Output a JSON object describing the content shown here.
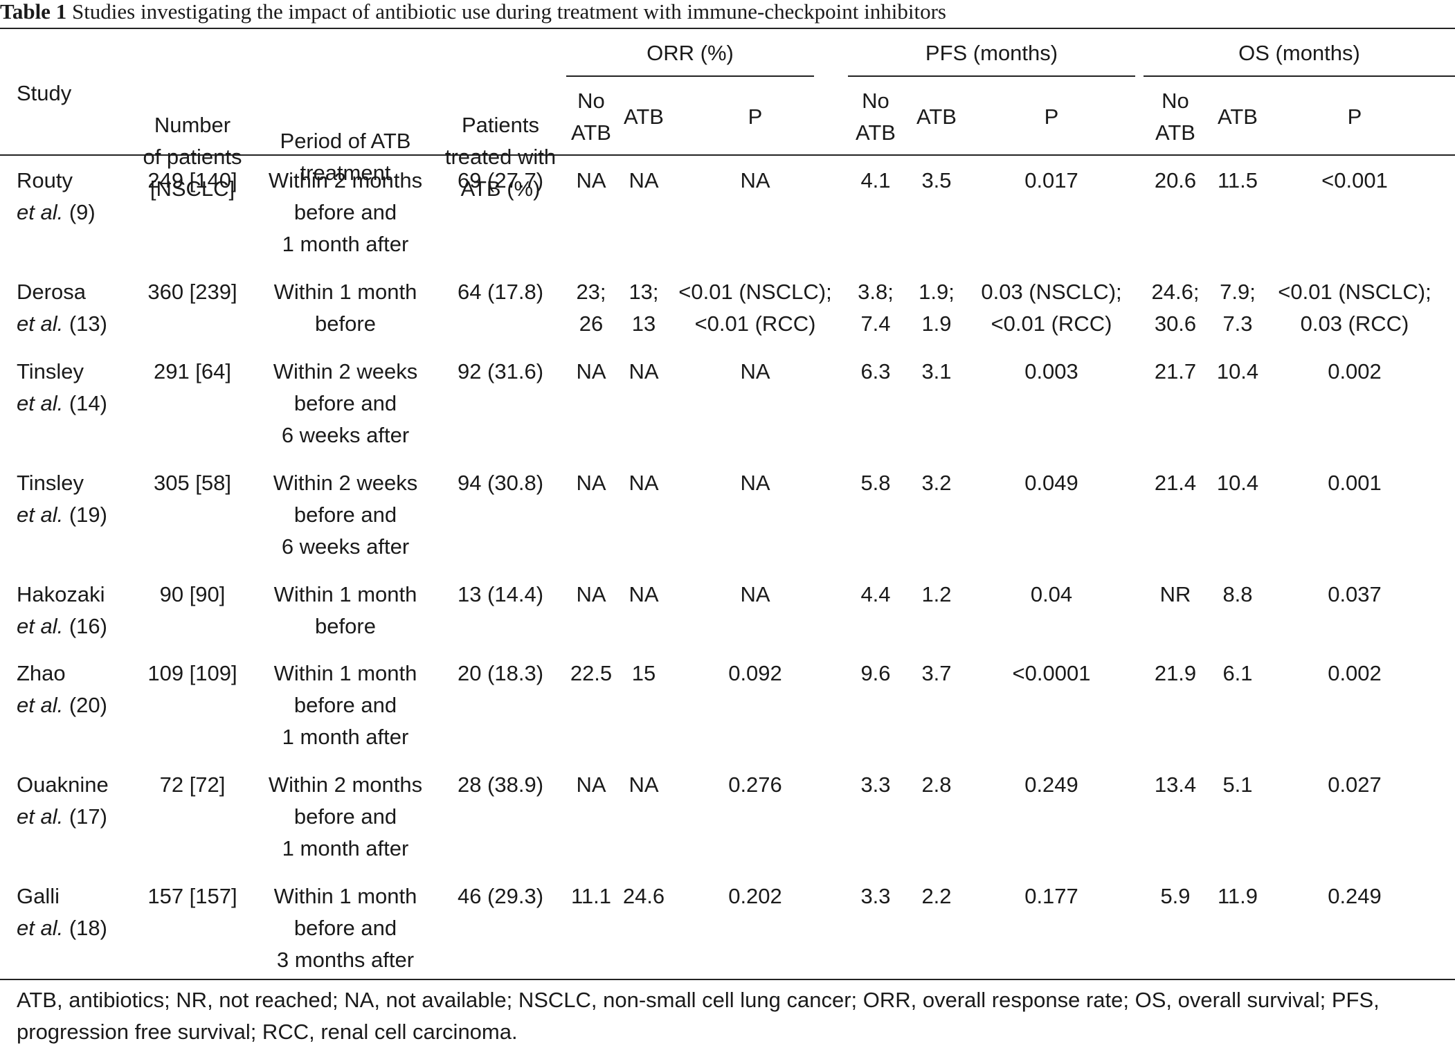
{
  "caption": {
    "label": "Table 1",
    "text": "Studies investigating the impact of antibiotic use during treatment with immune-checkpoint inhibitors"
  },
  "header": {
    "study": "Study",
    "patients": [
      "Number",
      "of patients",
      "[NSCLC]"
    ],
    "period": [
      "Period of ATB",
      "treatment"
    ],
    "treated": [
      "Patients",
      "treated with",
      "ATB (%)"
    ],
    "orr": "ORR (%)",
    "pfs": "PFS (months)",
    "os": "OS (months)",
    "no_atb": [
      "No",
      "ATB"
    ],
    "atb": "ATB",
    "p": "P"
  },
  "rows": [
    {
      "study": "Routy",
      "ref": "(9)",
      "patients": "249 [140]",
      "period": [
        "Within 2 months",
        "before and",
        "1 month after"
      ],
      "treated": "69 (27.7)",
      "orr_no": [
        "NA"
      ],
      "orr_atb": [
        "NA"
      ],
      "orr_p": [
        "NA"
      ],
      "pfs_no": [
        "4.1"
      ],
      "pfs_atb": [
        "3.5"
      ],
      "pfs_p": [
        "0.017"
      ],
      "os_no": [
        "20.6"
      ],
      "os_atb": [
        "11.5"
      ],
      "os_p": [
        "<0.001"
      ]
    },
    {
      "study": "Derosa",
      "ref": "(13)",
      "patients": "360 [239]",
      "period": [
        "Within 1 month",
        "before"
      ],
      "treated": "64 (17.8)",
      "orr_no": [
        "23;",
        "26"
      ],
      "orr_atb": [
        "13;",
        "13"
      ],
      "orr_p": [
        "<0.01 (NSCLC);",
        "<0.01 (RCC)"
      ],
      "pfs_no": [
        "3.8;",
        "7.4"
      ],
      "pfs_atb": [
        "1.9;",
        "1.9"
      ],
      "pfs_p": [
        "0.03 (NSCLC);",
        "<0.01 (RCC)"
      ],
      "os_no": [
        "24.6;",
        "30.6"
      ],
      "os_atb": [
        "7.9;",
        "7.3"
      ],
      "os_p": [
        "<0.01 (NSCLC);",
        "0.03 (RCC)"
      ]
    },
    {
      "study": "Tinsley",
      "ref": "(14)",
      "patients": "291 [64]",
      "period": [
        "Within 2 weeks",
        "before and",
        "6 weeks after"
      ],
      "treated": "92 (31.6)",
      "orr_no": [
        "NA"
      ],
      "orr_atb": [
        "NA"
      ],
      "orr_p": [
        "NA"
      ],
      "pfs_no": [
        "6.3"
      ],
      "pfs_atb": [
        "3.1"
      ],
      "pfs_p": [
        "0.003"
      ],
      "os_no": [
        "21.7"
      ],
      "os_atb": [
        "10.4"
      ],
      "os_p": [
        "0.002"
      ]
    },
    {
      "study": "Tinsley",
      "ref": "(19)",
      "patients": "305 [58]",
      "period": [
        "Within 2 weeks",
        "before and",
        "6 weeks after"
      ],
      "treated": "94 (30.8)",
      "orr_no": [
        "NA"
      ],
      "orr_atb": [
        "NA"
      ],
      "orr_p": [
        "NA"
      ],
      "pfs_no": [
        "5.8"
      ],
      "pfs_atb": [
        "3.2"
      ],
      "pfs_p": [
        "0.049"
      ],
      "os_no": [
        "21.4"
      ],
      "os_atb": [
        "10.4"
      ],
      "os_p": [
        "0.001"
      ]
    },
    {
      "study": "Hakozaki",
      "ref": "(16)",
      "patients": "90 [90]",
      "period": [
        "Within 1 month",
        "before"
      ],
      "treated": "13 (14.4)",
      "orr_no": [
        "NA"
      ],
      "orr_atb": [
        "NA"
      ],
      "orr_p": [
        "NA"
      ],
      "pfs_no": [
        "4.4"
      ],
      "pfs_atb": [
        "1.2"
      ],
      "pfs_p": [
        "0.04"
      ],
      "os_no": [
        "NR"
      ],
      "os_atb": [
        "8.8"
      ],
      "os_p": [
        "0.037"
      ]
    },
    {
      "study": "Zhao",
      "ref": "(20)",
      "patients": "109 [109]",
      "period": [
        "Within 1 month",
        "before and",
        "1 month after"
      ],
      "treated": "20 (18.3)",
      "orr_no": [
        "22.5"
      ],
      "orr_atb": [
        "15"
      ],
      "orr_p": [
        "0.092"
      ],
      "pfs_no": [
        "9.6"
      ],
      "pfs_atb": [
        "3.7"
      ],
      "pfs_p": [
        "<0.0001"
      ],
      "os_no": [
        "21.9"
      ],
      "os_atb": [
        "6.1"
      ],
      "os_p": [
        "0.002"
      ]
    },
    {
      "study": "Ouaknine",
      "ref": "(17)",
      "patients": "72 [72]",
      "period": [
        "Within 2 months",
        "before and",
        "1 month after"
      ],
      "treated": "28 (38.9)",
      "orr_no": [
        "NA"
      ],
      "orr_atb": [
        "NA"
      ],
      "orr_p": [
        "0.276"
      ],
      "pfs_no": [
        "3.3"
      ],
      "pfs_atb": [
        "2.8"
      ],
      "pfs_p": [
        "0.249"
      ],
      "os_no": [
        "13.4"
      ],
      "os_atb": [
        "5.1"
      ],
      "os_p": [
        "0.027"
      ]
    },
    {
      "study": "Galli",
      "ref": "(18)",
      "patients": "157 [157]",
      "period": [
        "Within 1 month",
        "before and",
        "3 months after"
      ],
      "treated": "46 (29.3)",
      "orr_no": [
        "11.1"
      ],
      "orr_atb": [
        "24.6"
      ],
      "orr_p": [
        "0.202"
      ],
      "pfs_no": [
        "3.3"
      ],
      "pfs_atb": [
        "2.2"
      ],
      "pfs_p": [
        "0.177"
      ],
      "os_no": [
        "5.9"
      ],
      "os_atb": [
        "11.9"
      ],
      "os_p": [
        "0.249"
      ]
    }
  ],
  "etal": "et al.",
  "footnote": "ATB, antibiotics; NR, not reached; NA, not available; NSCLC, non-small cell lung cancer; ORR, overall response rate; OS, overall survival; PFS, progression free survival; RCC, renal cell carcinoma."
}
